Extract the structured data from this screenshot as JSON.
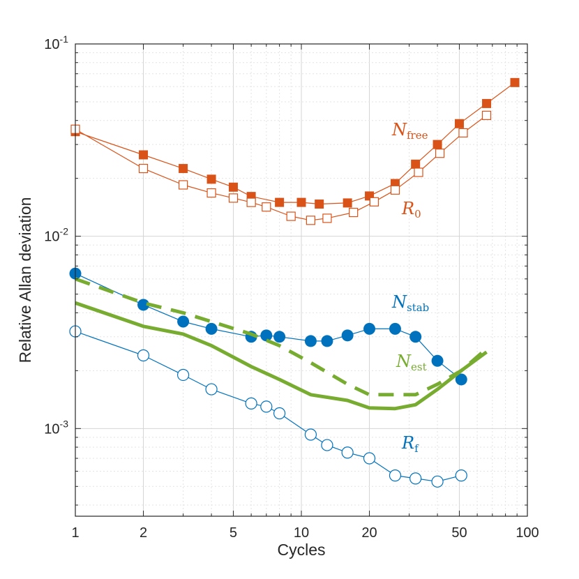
{
  "chart_data": {
    "type": "line",
    "title": "",
    "xlabel": "Cycles",
    "ylabel": "Relative Allan deviation",
    "xscale": "log",
    "yscale": "log",
    "xlim": [
      1,
      100
    ],
    "ylim": [
      0.00035,
      0.1
    ],
    "grid": true,
    "x_ticks": [
      {
        "value": 1,
        "label": "1"
      },
      {
        "value": 2,
        "label": "2"
      },
      {
        "value": 5,
        "label": "5"
      },
      {
        "value": 10,
        "label": "10"
      },
      {
        "value": 20,
        "label": "20"
      },
      {
        "value": 50,
        "label": "50"
      },
      {
        "value": 100,
        "label": "100"
      }
    ],
    "y_ticks": [
      {
        "value": 0.1,
        "base": "10",
        "exp": "-1"
      },
      {
        "value": 0.01,
        "base": "10",
        "exp": "-2"
      },
      {
        "value": 0.001,
        "base": "10",
        "exp": "-3"
      }
    ],
    "series": [
      {
        "name": "N_free",
        "label_main": "N",
        "label_sub": "free",
        "color": "#d95319",
        "marker": "square-filled",
        "line": "thin",
        "x": [
          1,
          2,
          3,
          4,
          5,
          6,
          8,
          10,
          12,
          16,
          20,
          26,
          32,
          40,
          50,
          66,
          88
        ],
        "y": [
          0.035,
          0.0265,
          0.0225,
          0.0198,
          0.018,
          0.0161,
          0.015,
          0.015,
          0.0147,
          0.0149,
          0.0162,
          0.0188,
          0.0237,
          0.03,
          0.0385,
          0.049,
          0.063
        ]
      },
      {
        "name": "R_0",
        "label_main": "R",
        "label_sub": "0",
        "color": "#d95319",
        "marker": "square-open",
        "line": "thin",
        "x": [
          1,
          2,
          3,
          4,
          5,
          6,
          7,
          9,
          11,
          13,
          17,
          21,
          26,
          33,
          41,
          52,
          66
        ],
        "y": [
          0.036,
          0.0225,
          0.0185,
          0.0168,
          0.0158,
          0.015,
          0.0142,
          0.0127,
          0.0121,
          0.0124,
          0.0133,
          0.0151,
          0.0174,
          0.0215,
          0.027,
          0.0345,
          0.0425
        ]
      },
      {
        "name": "N_stab",
        "label_main": "N",
        "label_sub": "stab",
        "color": "#0072bd",
        "marker": "circle-filled",
        "line": "thin",
        "x": [
          1,
          2,
          3,
          4,
          6,
          7,
          8,
          11,
          13,
          16,
          20,
          26,
          32,
          40,
          51
        ],
        "y": [
          0.0064,
          0.0044,
          0.0036,
          0.0033,
          0.003,
          0.00305,
          0.003,
          0.00285,
          0.00285,
          0.00305,
          0.0033,
          0.0033,
          0.003,
          0.00225,
          0.0018
        ]
      },
      {
        "name": "N_est_dashed",
        "color": "#77ac30",
        "marker": "none",
        "line": "dashed",
        "x": [
          1,
          2,
          3,
          4,
          6,
          8,
          11,
          16,
          20,
          26,
          32,
          40,
          51,
          66
        ],
        "y": [
          0.006,
          0.0045,
          0.004,
          0.0036,
          0.0031,
          0.0027,
          0.0022,
          0.0017,
          0.0015,
          0.0015,
          0.0015,
          0.0017,
          0.002,
          0.0026
        ]
      },
      {
        "name": "N_est",
        "label_main": "N",
        "label_sub": "est",
        "color": "#77ac30",
        "marker": "none",
        "line": "thick",
        "x": [
          1,
          2,
          3,
          4,
          6,
          8,
          11,
          16,
          20,
          26,
          32,
          40,
          51,
          66
        ],
        "y": [
          0.0045,
          0.0034,
          0.0031,
          0.0027,
          0.0021,
          0.0018,
          0.0015,
          0.0014,
          0.00128,
          0.00127,
          0.00133,
          0.0016,
          0.002,
          0.0025
        ]
      },
      {
        "name": "R_f",
        "label_main": "R",
        "label_sub": "f",
        "color": "#0072bd",
        "marker": "circle-open",
        "line": "thin",
        "x": [
          1,
          2,
          3,
          4,
          6,
          7,
          8,
          11,
          13,
          16,
          20,
          26,
          32,
          40,
          51
        ],
        "y": [
          0.0032,
          0.0024,
          0.0019,
          0.0016,
          0.00135,
          0.0013,
          0.0012,
          0.00093,
          0.00082,
          0.00075,
          0.0007,
          0.00057,
          0.00055,
          0.00053,
          0.00057
        ]
      }
    ]
  }
}
